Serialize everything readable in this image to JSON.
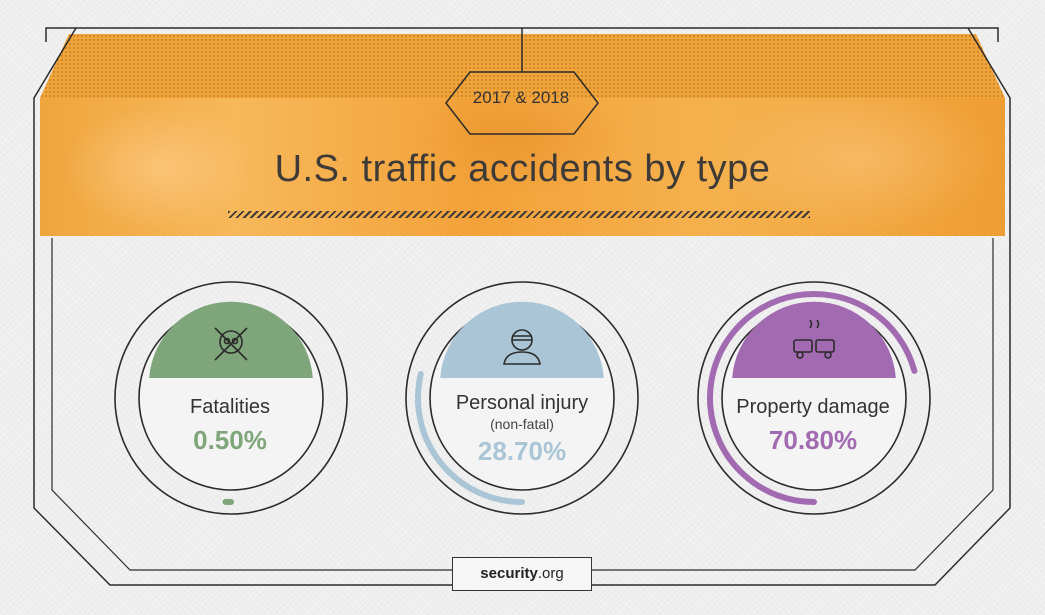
{
  "header": {
    "years": "2017 & 2018",
    "title": "U.S. traffic accidents by type"
  },
  "credit": {
    "brand": "security",
    "tld": ".org"
  },
  "chart_data": {
    "type": "gauge",
    "title": "U.S. traffic accidents by type",
    "unit": "%",
    "series": [
      {
        "name": "Fatalities",
        "sublabel": "",
        "value": 0.5,
        "display": "0.50%",
        "color": "#7fa57a",
        "icon": "skull-crossbones-icon"
      },
      {
        "name": "Personal injury",
        "sublabel": "(non-fatal)",
        "value": 28.7,
        "display": "28.70%",
        "color": "#a9c5d6",
        "icon": "injured-person-icon"
      },
      {
        "name": "Property damage",
        "sublabel": "",
        "value": 70.8,
        "display": "70.80%",
        "color": "#a26ab0",
        "icon": "car-crash-icon"
      }
    ]
  },
  "colors": {
    "banner": "#f3a63f",
    "text": "#3d3a38",
    "frame": "#2b2b2b"
  }
}
